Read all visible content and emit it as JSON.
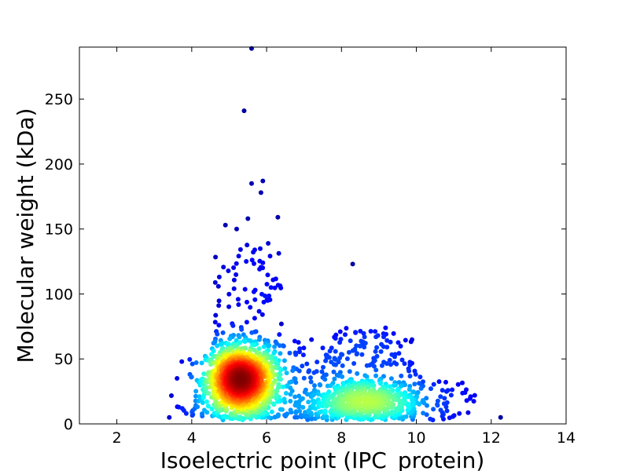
{
  "chart_data": {
    "type": "scatter",
    "title": "",
    "xlabel": "Isoelectric point (IPC_protein)",
    "ylabel": "Molecular weight (kDa)",
    "xlim": [
      1,
      14
    ],
    "ylim": [
      0,
      290
    ],
    "xticks": [
      2,
      4,
      6,
      8,
      10,
      12,
      14
    ],
    "yticks": [
      0,
      50,
      100,
      150,
      200,
      250
    ],
    "grid": false,
    "legend": "none",
    "color_encoding": "point density (blue = low, red = high, jet colormap)",
    "density_clusters": [
      {
        "pI": 5.3,
        "mw": 30,
        "description": "main acidic cluster"
      },
      {
        "pI": 8.6,
        "mw": 15,
        "description": "secondary basic cluster"
      }
    ],
    "notable_points": [
      {
        "pI": 5.6,
        "mw": 289
      },
      {
        "pI": 5.4,
        "mw": 241
      },
      {
        "pI": 5.6,
        "mw": 185
      },
      {
        "pI": 5.9,
        "mw": 187
      },
      {
        "pI": 5.85,
        "mw": 178
      },
      {
        "pI": 6.3,
        "mw": 159
      },
      {
        "pI": 5.5,
        "mw": 158
      },
      {
        "pI": 4.9,
        "mw": 153
      },
      {
        "pI": 5.2,
        "mw": 150
      },
      {
        "pI": 8.3,
        "mw": 123
      },
      {
        "pI": 5.9,
        "mw": 124
      },
      {
        "pI": 12.25,
        "mw": 5
      },
      {
        "pI": 3.4,
        "mw": 5
      },
      {
        "pI": 11.45,
        "mw": 21
      }
    ]
  }
}
